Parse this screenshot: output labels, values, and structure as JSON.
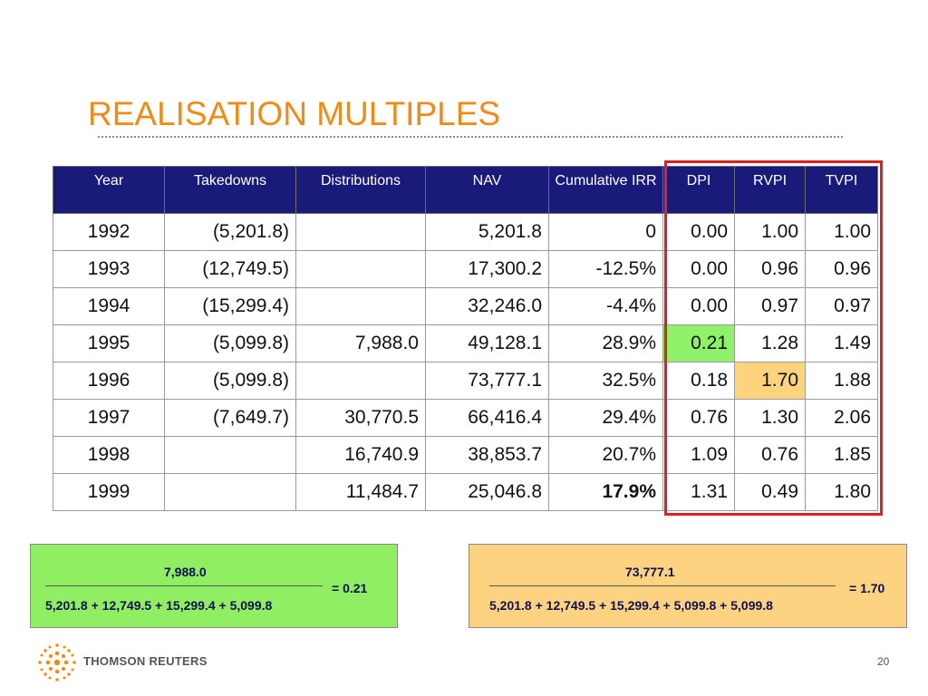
{
  "slide": {
    "title": "REALISATION MULTIPLES",
    "page_number": "20",
    "brand": "THOMSON REUTERS"
  },
  "table": {
    "headers": [
      "Year",
      "Takedowns",
      "Distributions",
      "NAV",
      "Cumulative IRR",
      "DPI",
      "RVPI",
      "TVPI"
    ],
    "rows": [
      [
        "1992",
        "(5,201.8)",
        "",
        "5,201.8",
        "0",
        "0.00",
        "1.00",
        "1.00"
      ],
      [
        "1993",
        "(12,749.5)",
        "",
        "17,300.2",
        "-12.5%",
        "0.00",
        "0.96",
        "0.96"
      ],
      [
        "1994",
        "(15,299.4)",
        "",
        "32,246.0",
        "-4.4%",
        "0.00",
        "0.97",
        "0.97"
      ],
      [
        "1995",
        "(5,099.8)",
        "7,988.0",
        "49,128.1",
        "28.9%",
        "0.21",
        "1.28",
        "1.49"
      ],
      [
        "1996",
        "(5,099.8)",
        "",
        "73,777.1",
        "32.5%",
        "0.18",
        "1.70",
        "1.88"
      ],
      [
        "1997",
        "(7,649.7)",
        "30,770.5",
        "66,416.4",
        "29.4%",
        "0.76",
        "1.30",
        "2.06"
      ],
      [
        "1998",
        "",
        "16,740.9",
        "38,853.7",
        "20.7%",
        "1.09",
        "0.76",
        "1.85"
      ],
      [
        "1999",
        "",
        "11,484.7",
        "25,046.8",
        "17.9%",
        "1.31",
        "0.49",
        "1.80"
      ]
    ]
  },
  "colors": {
    "title": "#f28a16",
    "header_bg": "#1a1a7a",
    "highlight_green": "#8ff06a",
    "highlight_orange": "#fdd37e",
    "frame_red": "#e02020"
  },
  "calc_dpi": {
    "numerator": "7,988.0",
    "denominator": "5,201.8 + 12,749.5 + 15,299.4 + 5,099.8",
    "result": "= 0.21"
  },
  "calc_rvpi": {
    "numerator": "73,777.1",
    "denominator": "5,201.8 + 12,749.5 + 15,299.4 + 5,099.8 + 5,099.8",
    "result": "= 1.70"
  }
}
